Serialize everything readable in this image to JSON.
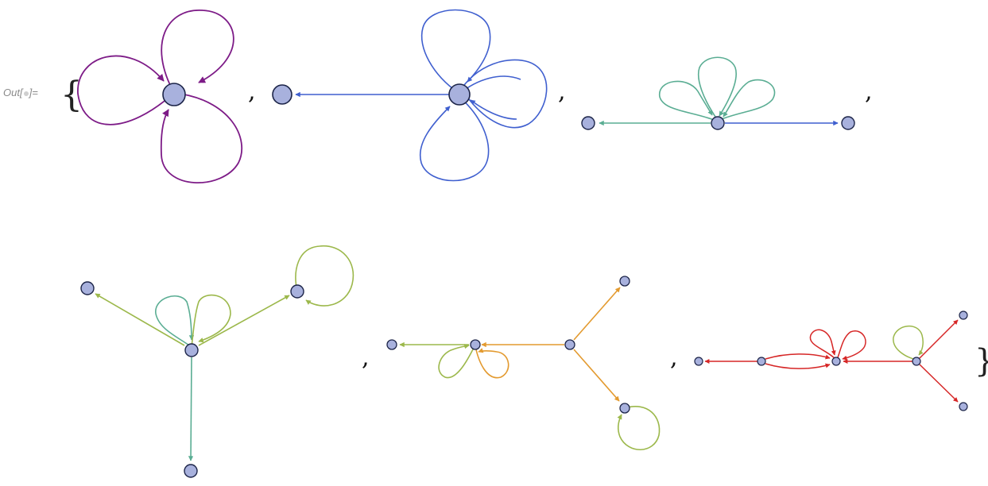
{
  "output_label": {
    "prefix": "Out[",
    "suffix": "]="
  },
  "open_brace": "{",
  "close_brace": "}",
  "separator": ",",
  "colors": {
    "purple": "#7d1b87",
    "blue": "#3f5fcf",
    "teal": "#5aad93",
    "lime": "#9cb84b",
    "orange": "#e39a2f",
    "red": "#d62626",
    "node_fill": "#a8b1dd",
    "node_stroke": "#1c2448"
  },
  "graphs": [
    {
      "id": "graph-1",
      "vertices": 1,
      "edges": [
        {
          "type": "self-loop",
          "count": 3,
          "color": "purple"
        }
      ]
    },
    {
      "id": "graph-2",
      "vertices": 2,
      "edges": [
        {
          "type": "self-loop",
          "count": 4,
          "color": "blue"
        },
        {
          "type": "directed",
          "count": 1,
          "color": "blue"
        }
      ]
    },
    {
      "id": "graph-3",
      "vertices": 3,
      "edges": [
        {
          "type": "self-loop",
          "count": 3,
          "color": "teal"
        },
        {
          "type": "directed",
          "count": 1,
          "color": "teal"
        },
        {
          "type": "directed",
          "count": 1,
          "color": "blue"
        }
      ]
    },
    {
      "id": "graph-4",
      "vertices": 4,
      "edges": [
        {
          "type": "self-loop",
          "count": 1,
          "color": "teal"
        },
        {
          "type": "self-loop",
          "count": 1,
          "color": "lime"
        },
        {
          "type": "self-loop",
          "count": 1,
          "color": "lime"
        },
        {
          "type": "directed",
          "count": 2,
          "color": "lime"
        },
        {
          "type": "directed",
          "count": 1,
          "color": "teal"
        }
      ]
    },
    {
      "id": "graph-5",
      "vertices": 5,
      "edges": [
        {
          "type": "self-loop",
          "count": 1,
          "color": "lime"
        },
        {
          "type": "self-loop",
          "count": 1,
          "color": "orange"
        },
        {
          "type": "self-loop",
          "count": 1,
          "color": "lime"
        },
        {
          "type": "directed",
          "count": 1,
          "color": "lime"
        },
        {
          "type": "directed",
          "count": 3,
          "color": "orange"
        }
      ]
    },
    {
      "id": "graph-6",
      "vertices": 6,
      "edges": [
        {
          "type": "self-loop",
          "count": 2,
          "color": "red"
        },
        {
          "type": "self-loop",
          "count": 1,
          "color": "lime"
        },
        {
          "type": "directed",
          "count": 6,
          "color": "red"
        }
      ]
    }
  ]
}
